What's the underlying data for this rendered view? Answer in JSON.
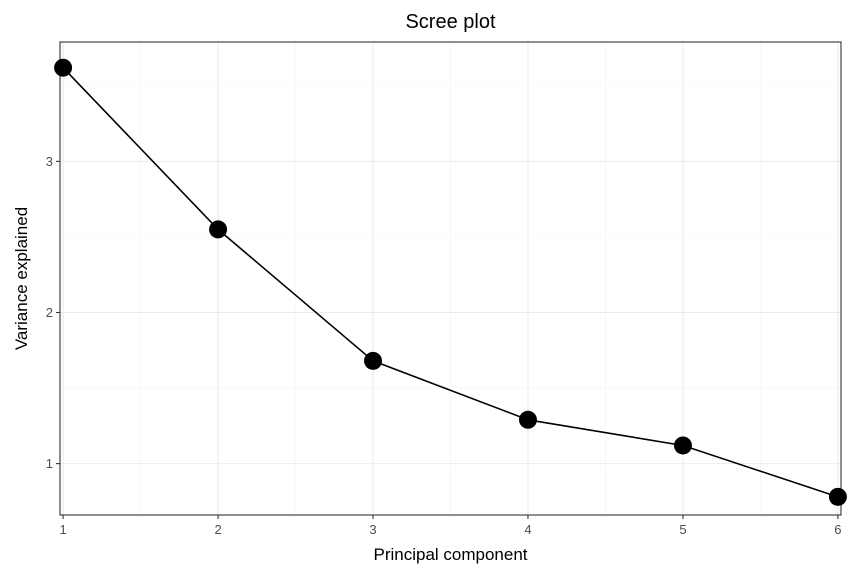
{
  "chart_data": {
    "type": "line",
    "title": "Scree plot",
    "xlabel": "Principal component",
    "ylabel": "Variance explained",
    "x": [
      1,
      2,
      3,
      4,
      5,
      6
    ],
    "x_ticks": [
      "1",
      "2",
      "3",
      "4",
      "5",
      "6"
    ],
    "y_ticks": [
      "1",
      "2",
      "3"
    ],
    "y_tick_values": [
      1,
      2,
      3
    ],
    "xlim": [
      0.98,
      6.02
    ],
    "ylim": [
      0.66,
      3.79
    ],
    "series": [
      {
        "values": [
          3.62,
          2.55,
          1.68,
          1.29,
          1.12,
          0.78
        ]
      }
    ],
    "grid": true,
    "markers": "filled-circle",
    "colors": {
      "line": "#000000",
      "points": "#000000",
      "grid": "#ebebeb",
      "border": "#333333"
    }
  }
}
